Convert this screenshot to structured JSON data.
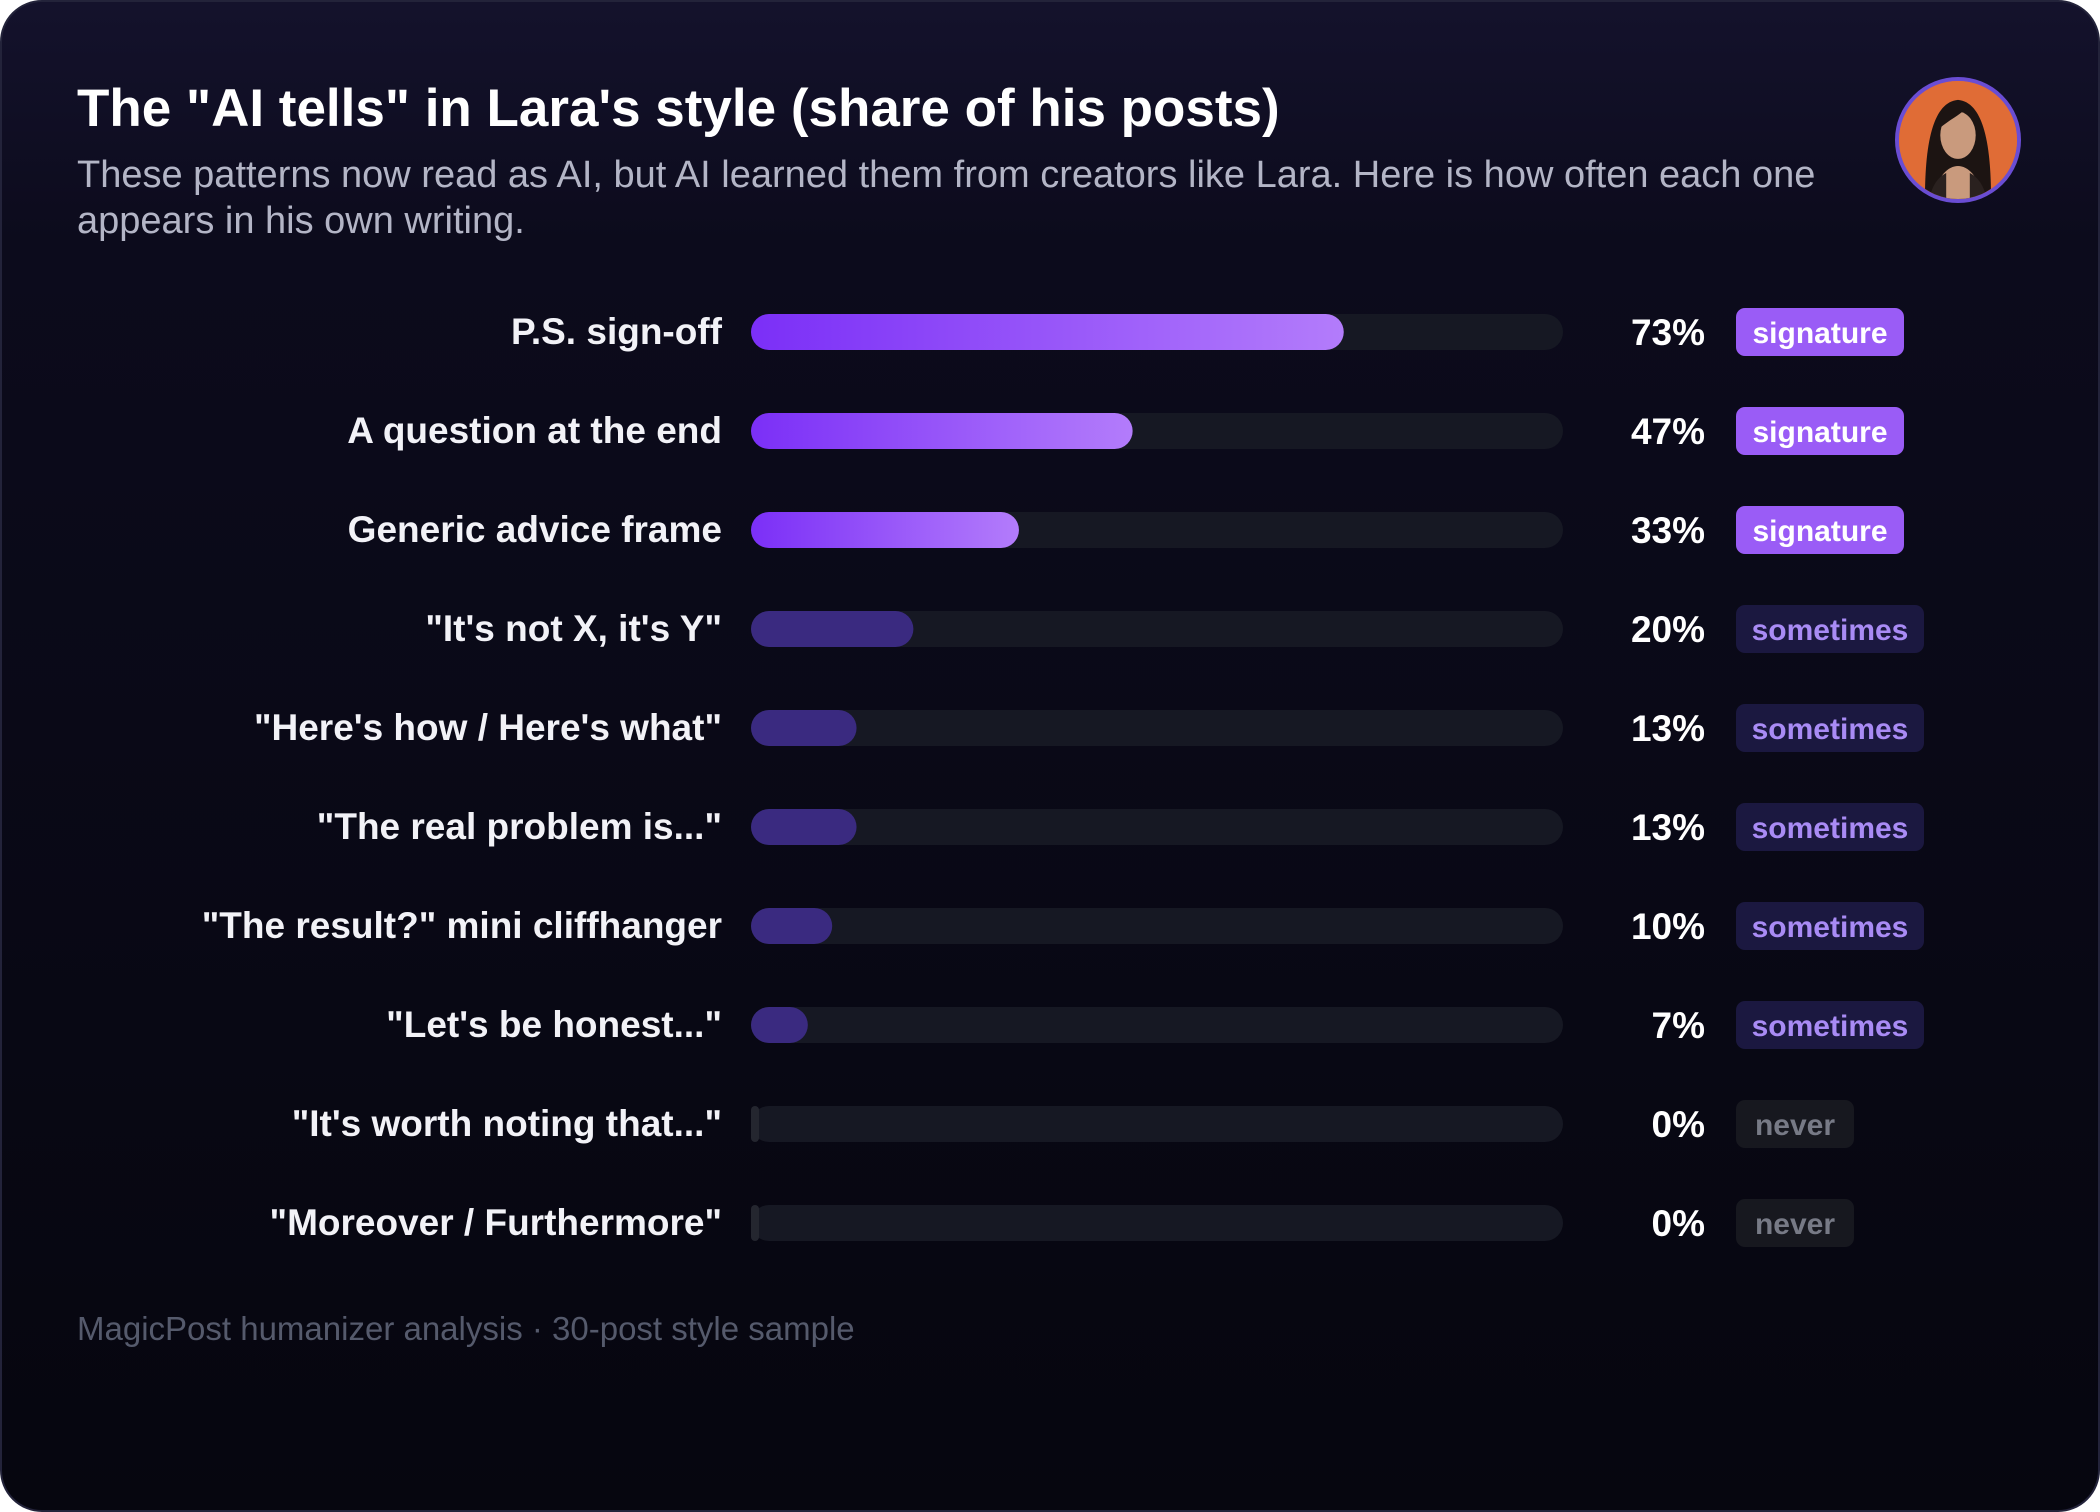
{
  "header": {
    "title": "The \"AI tells\" in Lara's style (share of his posts)",
    "subtitle": "These patterns now read as AI, but AI learned them from creators like Lara. Here is how often each one appears in his own writing."
  },
  "avatar": {
    "icon": "profile-photo-icon",
    "accent": "#6a4dd3",
    "background": "#e06c36"
  },
  "footer": {
    "note": "MagicPost humanizer analysis · 30-post style sample"
  },
  "colors": {
    "signature_bar_start": "#7b2ff7",
    "signature_bar_end": "#b37cfb",
    "sometimes_bar": "#3a2a80",
    "never_bar": "#24262f",
    "track": "#161823",
    "signature_badge_bg": "#9a5cf6",
    "signature_badge_text": "#ffffff",
    "sometimes_badge_bg": "#1b1840",
    "sometimes_badge_text": "#a98bf5",
    "never_badge_bg": "#17181f",
    "never_badge_text": "#777a86"
  },
  "chart_data": {
    "type": "bar",
    "orientation": "horizontal",
    "xlim": [
      0,
      100
    ],
    "unit": "%",
    "categories": [
      "P.S. sign-off",
      "A question at the end",
      "Generic advice frame",
      "\"It's not X, it's Y\"",
      "\"Here's how / Here's what\"",
      "\"The real problem is...\"",
      "\"The result?\" mini cliffhanger",
      "\"Let's be honest...\"",
      "\"It's worth noting that...\"",
      "\"Moreover / Furthermore\""
    ],
    "values": [
      73,
      47,
      33,
      20,
      13,
      13,
      10,
      7,
      0,
      0
    ],
    "value_labels": [
      "73%",
      "47%",
      "33%",
      "20%",
      "13%",
      "13%",
      "10%",
      "7%",
      "0%",
      "0%"
    ],
    "badges": [
      "signature",
      "signature",
      "signature",
      "sometimes",
      "sometimes",
      "sometimes",
      "sometimes",
      "sometimes",
      "never",
      "never"
    ]
  }
}
